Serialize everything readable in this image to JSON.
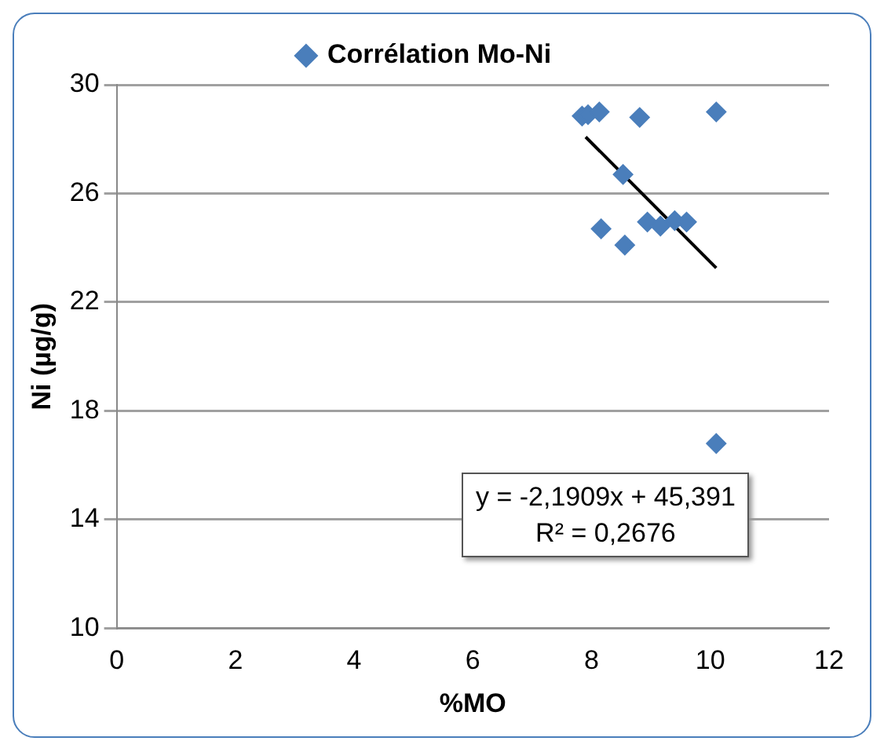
{
  "chart_data": {
    "type": "scatter",
    "xlabel": "%MO",
    "ylabel": "Ni (µg/g)",
    "xlim": [
      0,
      12
    ],
    "xticks": [
      0,
      2,
      4,
      6,
      8,
      10,
      12
    ],
    "ylim": [
      10,
      30
    ],
    "yticks": [
      10,
      14,
      18,
      22,
      26,
      30
    ],
    "grid": "y",
    "legend": "top",
    "annotations": [
      "y = -2,1909x + 45,391",
      "R² = 0,2676"
    ],
    "series": [
      {
        "name": "Corrélation Mo-Ni",
        "color": "#4a7ebb",
        "marker": "diamond",
        "x": [
          7.84,
          7.94,
          8.13,
          8.81,
          10.1,
          8.53,
          8.16,
          8.56,
          8.94,
          9.16,
          9.4,
          9.6,
          10.1
        ],
        "values": [
          28.85,
          28.9,
          29.0,
          28.8,
          29.0,
          26.7,
          24.7,
          24.1,
          24.95,
          24.8,
          25.0,
          24.95,
          16.8
        ]
      },
      {
        "type": "line",
        "color": "#000000",
        "marker": "none",
        "x": [
          7.9,
          10.1
        ],
        "values": [
          28.08,
          23.26
        ]
      }
    ]
  }
}
